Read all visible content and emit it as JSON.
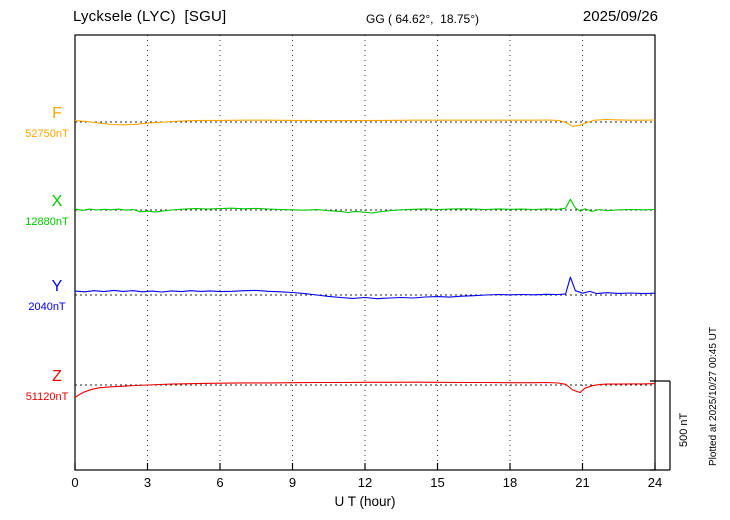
{
  "header": {
    "station": "Lycksele (LYC)  [SGU]",
    "coords": "GG ( 64.62°,  18.75°)",
    "date": "2025/09/26"
  },
  "right_side": {
    "plotted_at": "Plotted at 2025/10/27 00:45 UT"
  },
  "chart_data": {
    "type": "line",
    "title": "Lycksele (LYC) [SGU] magnetogram 2025/09/26",
    "xlabel": "U T (hour)",
    "xlim": [
      0,
      24
    ],
    "xticks": [
      0,
      3,
      6,
      9,
      12,
      15,
      18,
      21,
      24
    ],
    "grid": "dotted-vertical-every-3h",
    "legend_position": "left-channel-labels",
    "scale_bar": {
      "label": "500 nT",
      "nT": 500
    },
    "series": [
      {
        "name": "F",
        "color": "#FFA500",
        "baseline_label": "52750nT",
        "baseline_nT": 52750,
        "points_hour_offset_nT": [
          [
            0,
            8
          ],
          [
            0.5,
            2
          ],
          [
            1,
            -6
          ],
          [
            1.5,
            -14
          ],
          [
            2,
            -16
          ],
          [
            2.5,
            -13
          ],
          [
            3,
            -6
          ],
          [
            3.5,
            -2
          ],
          [
            4,
            3
          ],
          [
            4.5,
            6
          ],
          [
            5,
            8
          ],
          [
            6,
            9
          ],
          [
            7,
            10
          ],
          [
            8,
            10
          ],
          [
            9,
            9
          ],
          [
            10,
            8
          ],
          [
            11,
            8
          ],
          [
            12,
            8
          ],
          [
            13,
            9
          ],
          [
            14,
            10
          ],
          [
            15,
            10
          ],
          [
            16,
            10
          ],
          [
            17,
            10
          ],
          [
            18,
            10
          ],
          [
            19,
            10
          ],
          [
            19.5,
            11
          ],
          [
            20,
            9
          ],
          [
            20.3,
            -2
          ],
          [
            20.6,
            -24
          ],
          [
            20.9,
            -18
          ],
          [
            21.2,
            -2
          ],
          [
            21.5,
            10
          ],
          [
            22,
            14
          ],
          [
            22.5,
            12
          ],
          [
            23,
            10
          ],
          [
            23.5,
            10
          ],
          [
            24,
            11
          ]
        ]
      },
      {
        "name": "X",
        "color": "#00C800",
        "baseline_label": "12880nT",
        "baseline_nT": 12880,
        "points_hour_offset_nT": [
          [
            0,
            6
          ],
          [
            0.3,
            -2
          ],
          [
            0.6,
            5
          ],
          [
            0.9,
            0
          ],
          [
            1.2,
            4
          ],
          [
            1.5,
            1
          ],
          [
            1.8,
            5
          ],
          [
            2.1,
            -1
          ],
          [
            2.4,
            3
          ],
          [
            2.7,
            -10
          ],
          [
            3,
            -6
          ],
          [
            3.3,
            -12
          ],
          [
            3.6,
            -6
          ],
          [
            4,
            0
          ],
          [
            4.5,
            5
          ],
          [
            5,
            8
          ],
          [
            5.5,
            5
          ],
          [
            6,
            8
          ],
          [
            6.5,
            10
          ],
          [
            7,
            7
          ],
          [
            7.5,
            9
          ],
          [
            8,
            5
          ],
          [
            8.5,
            3
          ],
          [
            9,
            1
          ],
          [
            9.5,
            -1
          ],
          [
            10,
            2
          ],
          [
            10.5,
            -4
          ],
          [
            11,
            -8
          ],
          [
            11.3,
            -14
          ],
          [
            11.6,
            -8
          ],
          [
            12,
            -13
          ],
          [
            12.3,
            -17
          ],
          [
            12.6,
            -10
          ],
          [
            13,
            -4
          ],
          [
            13.5,
            1
          ],
          [
            14,
            4
          ],
          [
            14.5,
            6
          ],
          [
            15,
            3
          ],
          [
            15.5,
            5
          ],
          [
            16,
            7
          ],
          [
            16.5,
            5
          ],
          [
            17,
            3
          ],
          [
            17.5,
            6
          ],
          [
            18,
            4
          ],
          [
            18.5,
            5
          ],
          [
            19,
            3
          ],
          [
            19.5,
            6
          ],
          [
            20,
            4
          ],
          [
            20.3,
            10
          ],
          [
            20.5,
            60
          ],
          [
            20.7,
            12
          ],
          [
            20.9,
            -6
          ],
          [
            21.1,
            6
          ],
          [
            21.4,
            -8
          ],
          [
            21.7,
            3
          ],
          [
            22,
            -4
          ],
          [
            22.5,
            1
          ],
          [
            23,
            3
          ],
          [
            23.5,
            1
          ],
          [
            24,
            3
          ]
        ]
      },
      {
        "name": "Y",
        "color": "#0000EE",
        "baseline_label": "2040nT",
        "baseline_nT": 2040,
        "points_hour_offset_nT": [
          [
            0,
            22
          ],
          [
            0.4,
            18
          ],
          [
            0.8,
            24
          ],
          [
            1.2,
            19
          ],
          [
            1.6,
            26
          ],
          [
            2,
            20
          ],
          [
            2.4,
            24
          ],
          [
            2.8,
            18
          ],
          [
            3.2,
            22
          ],
          [
            3.6,
            17
          ],
          [
            4,
            23
          ],
          [
            4.4,
            19
          ],
          [
            4.8,
            24
          ],
          [
            5.2,
            20
          ],
          [
            5.6,
            23
          ],
          [
            6,
            19
          ],
          [
            6.5,
            21
          ],
          [
            7,
            24
          ],
          [
            7.5,
            26
          ],
          [
            8,
            21
          ],
          [
            8.5,
            18
          ],
          [
            9,
            14
          ],
          [
            9.5,
            8
          ],
          [
            10,
            0
          ],
          [
            10.5,
            -8
          ],
          [
            11,
            -14
          ],
          [
            11.5,
            -19
          ],
          [
            12,
            -14
          ],
          [
            12.5,
            -21
          ],
          [
            13,
            -17
          ],
          [
            13.5,
            -14
          ],
          [
            14,
            -17
          ],
          [
            14.5,
            -11
          ],
          [
            15,
            -9
          ],
          [
            15.5,
            -12
          ],
          [
            16,
            -7
          ],
          [
            16.5,
            -4
          ],
          [
            17,
            0
          ],
          [
            17.5,
            3
          ],
          [
            18,
            1
          ],
          [
            18.5,
            3
          ],
          [
            19,
            1
          ],
          [
            19.5,
            4
          ],
          [
            20,
            3
          ],
          [
            20.3,
            6
          ],
          [
            20.5,
            100
          ],
          [
            20.7,
            25
          ],
          [
            21,
            10
          ],
          [
            21.3,
            20
          ],
          [
            21.6,
            8
          ],
          [
            22,
            13
          ],
          [
            22.5,
            9
          ],
          [
            23,
            11
          ],
          [
            23.5,
            8
          ],
          [
            24,
            10
          ]
        ]
      },
      {
        "name": "Z",
        "color": "#EE0000",
        "baseline_label": "51120nT",
        "baseline_nT": 51120,
        "points_hour_offset_nT": [
          [
            0,
            -70
          ],
          [
            0.2,
            -52
          ],
          [
            0.4,
            -38
          ],
          [
            0.7,
            -24
          ],
          [
            1,
            -16
          ],
          [
            1.5,
            -10
          ],
          [
            2,
            -7
          ],
          [
            2.5,
            -3
          ],
          [
            3,
            0
          ],
          [
            3.5,
            3
          ],
          [
            4,
            5
          ],
          [
            5,
            8
          ],
          [
            6,
            10
          ],
          [
            7,
            12
          ],
          [
            8,
            12
          ],
          [
            9,
            13
          ],
          [
            10,
            14
          ],
          [
            11,
            14
          ],
          [
            12,
            15
          ],
          [
            13,
            15
          ],
          [
            14,
            16
          ],
          [
            15,
            15
          ],
          [
            16,
            14
          ],
          [
            17,
            14
          ],
          [
            18,
            13
          ],
          [
            19,
            13
          ],
          [
            19.5,
            14
          ],
          [
            20,
            11
          ],
          [
            20.3,
            4
          ],
          [
            20.6,
            -28
          ],
          [
            20.9,
            -42
          ],
          [
            21.1,
            -18
          ],
          [
            21.4,
            -4
          ],
          [
            21.7,
            2
          ],
          [
            22,
            5
          ],
          [
            22.5,
            5
          ],
          [
            23,
            6
          ],
          [
            23.5,
            6
          ],
          [
            24,
            8
          ]
        ]
      }
    ]
  }
}
